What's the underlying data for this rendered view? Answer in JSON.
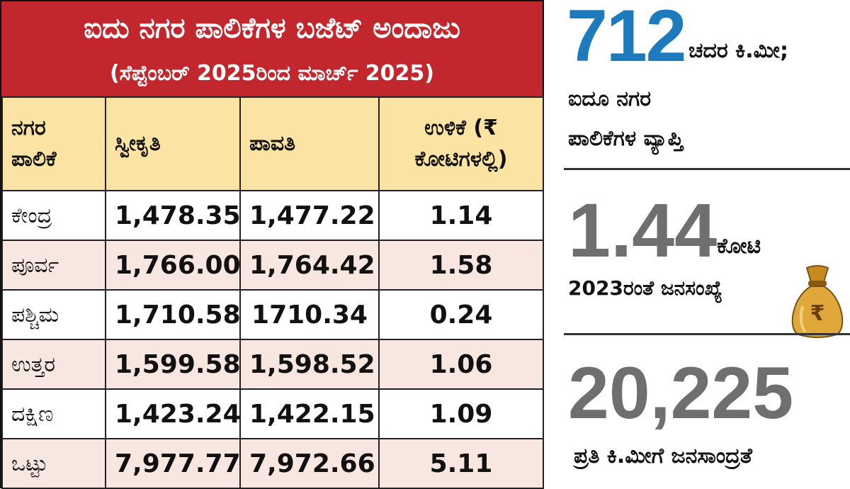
{
  "title": {
    "main": "ಐದು ನಗರ ಪಾಲಿಕೆಗಳ ಬಜೆಟ್ ಅಂದಾಜು",
    "subtitle": "(ಸೆಪ್ಟೆಂಬರ್ 2025ರಿಂದ ಮಾರ್ಚ್ 2025)"
  },
  "table": {
    "headers": {
      "corp": "ನಗರ ಪಾಲಿಕೆ",
      "received": "ಸ್ವೀಕೃತಿ",
      "paid": "ಪಾವತಿ",
      "balance": "ಉಳಿಕೆ (₹ ಕೋಟಿಗಳಲ್ಲಿ)"
    },
    "rows": [
      {
        "name": "ಕೇಂದ್ರ",
        "received": "1,478.35",
        "paid": "1,477.22",
        "balance": "1.14"
      },
      {
        "name": "ಪೂರ್ವ",
        "received": "1,766.00",
        "paid": "1,764.42",
        "balance": "1.58"
      },
      {
        "name": "ಪಶ್ಚಿಮ",
        "received": "1,710.58",
        "paid": "1710.34",
        "balance": "0.24"
      },
      {
        "name": "ಉತ್ತರ",
        "received": "1,599.58",
        "paid": "1,598.52",
        "balance": "1.06"
      },
      {
        "name": "ದಕ್ಷಿಣ",
        "received": "1,423.24",
        "paid": "1,422.15",
        "balance": "1.09"
      },
      {
        "name": "ಒಟ್ಟು",
        "received": "7,977.77",
        "paid": "7,972.66",
        "balance": "5.11"
      }
    ]
  },
  "stats": {
    "area": {
      "value": "712",
      "unit": "ಚದರ ಕಿ.ಮೀ;",
      "desc_line1": "ಐದೂ ನಗರ",
      "desc_line2": "ಪಾಲಿಕೆಗಳ ವ್ಯಾಪ್ತಿ"
    },
    "population": {
      "value": "1.44",
      "unit": "ಕೋಟಿ",
      "desc": "2023ರಂತೆ ಜನಸಂಖ್ಯೆ"
    },
    "density": {
      "value": "20,225",
      "desc": "ಪ್ರತಿ ಕಿ.ಮೀಗೆ ಜನಸಾಂದ್ರತೆ"
    }
  },
  "icons": {
    "bag": "money-bag-icon",
    "currency_symbol": "₹"
  },
  "colors": {
    "title_bg": "#c1272d",
    "header_bg": "#fbe3a3",
    "shade_row": "#f8e6e1",
    "blue": "#1d7bbd",
    "grey": "#6f6f6f"
  }
}
